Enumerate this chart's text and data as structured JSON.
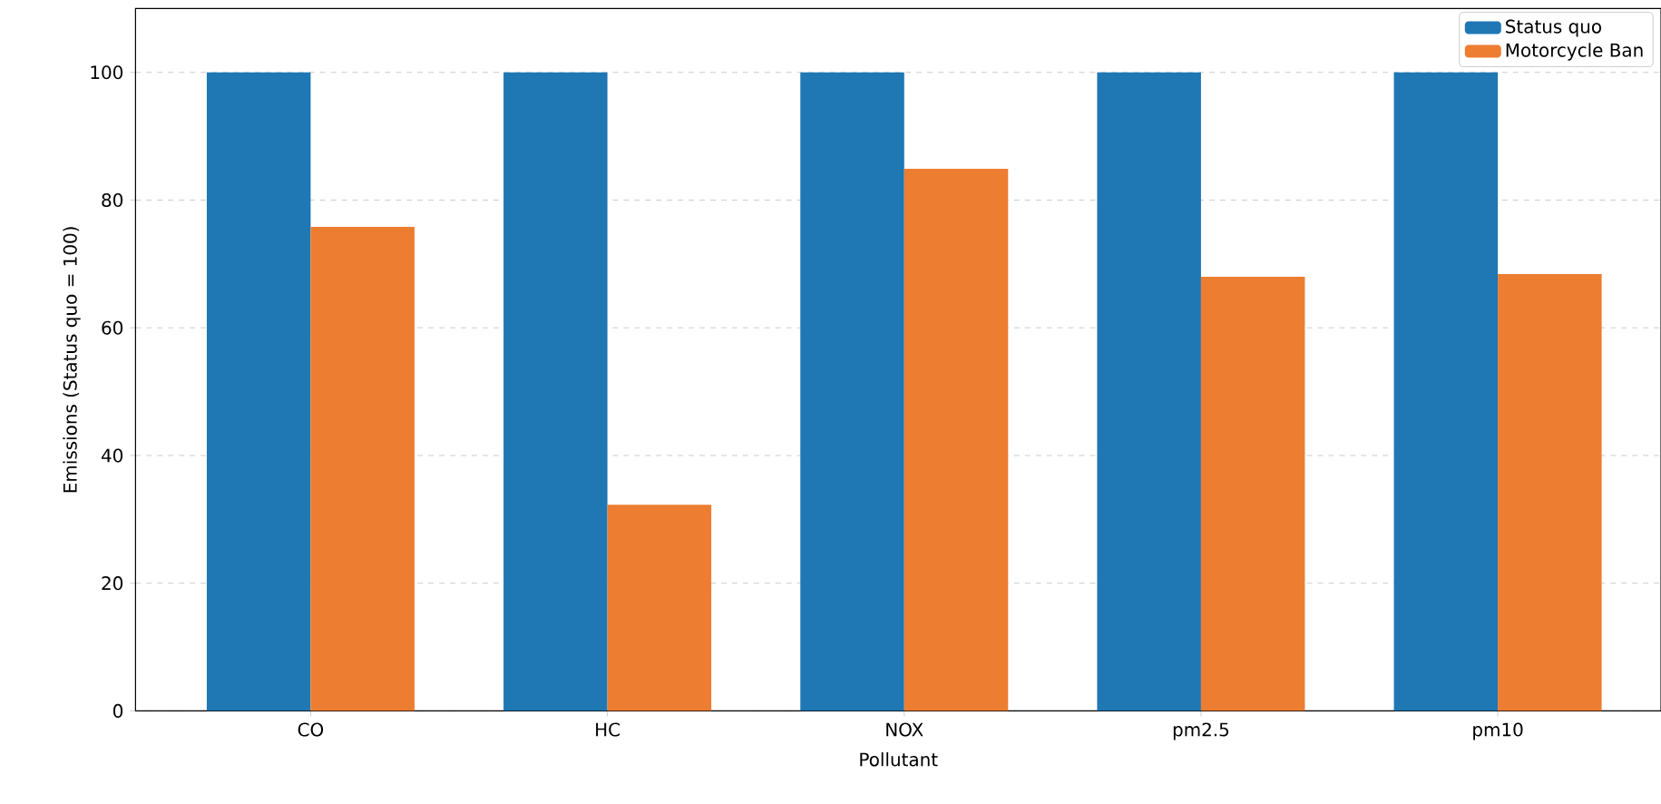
{
  "chart_data": {
    "type": "bar",
    "xlabel": "Pollutant",
    "ylabel": "Emissions (Status quo = 100)",
    "categories": [
      "CO",
      "HC",
      "NOX",
      "pm2.5",
      "pm10"
    ],
    "series": [
      {
        "name": "Status quo",
        "color": "#1f77b4",
        "values": [
          100,
          100,
          100,
          100,
          100
        ]
      },
      {
        "name": "Motorcycle Ban",
        "color": "#ed7d31",
        "values": [
          75.8,
          32.3,
          84.9,
          68.0,
          68.4
        ]
      }
    ],
    "ylim": [
      0,
      110
    ],
    "yticks": [
      0,
      20,
      40,
      60,
      80,
      100
    ],
    "grid": "y",
    "legend": "top right"
  }
}
